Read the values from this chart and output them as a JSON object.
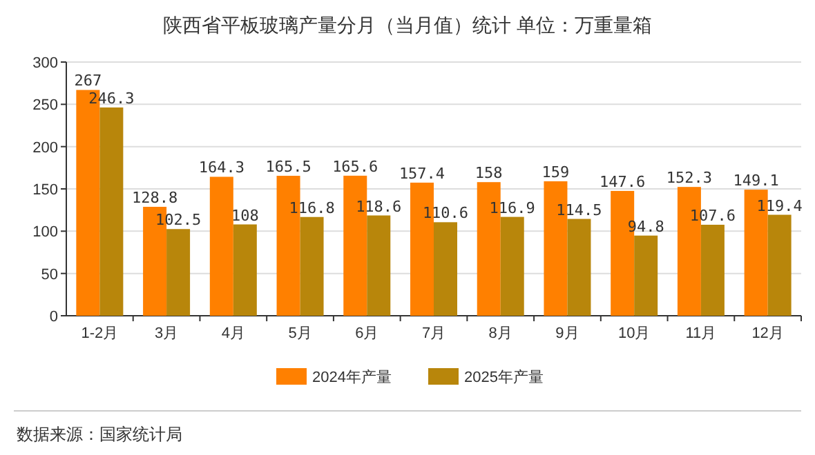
{
  "chart_data": {
    "type": "bar",
    "title": "陕西省平板玻璃产量分月（当月值）统计  单位：万重量箱",
    "categories": [
      "1-2月",
      "3月",
      "4月",
      "5月",
      "6月",
      "7月",
      "8月",
      "9月",
      "10月",
      "11月",
      "12月"
    ],
    "series": [
      {
        "name": "2024年产量",
        "color": "#ff8000",
        "values": [
          267,
          128.8,
          164.3,
          165.5,
          165.6,
          157.4,
          158,
          159,
          147.6,
          152.3,
          149.1
        ]
      },
      {
        "name": "2025年产量",
        "color": "#b8860b",
        "values": [
          246.3,
          102.5,
          108,
          116.8,
          118.6,
          110.6,
          116.9,
          114.5,
          94.8,
          107.6,
          119.4
        ]
      }
    ],
    "ylim": [
      0,
      300
    ],
    "yticks": [
      0,
      50,
      100,
      150,
      200,
      250,
      300
    ],
    "grid": "y",
    "legend": "bottom",
    "data_labels": true,
    "annotations": [
      "数据来源：国家统计局"
    ]
  }
}
